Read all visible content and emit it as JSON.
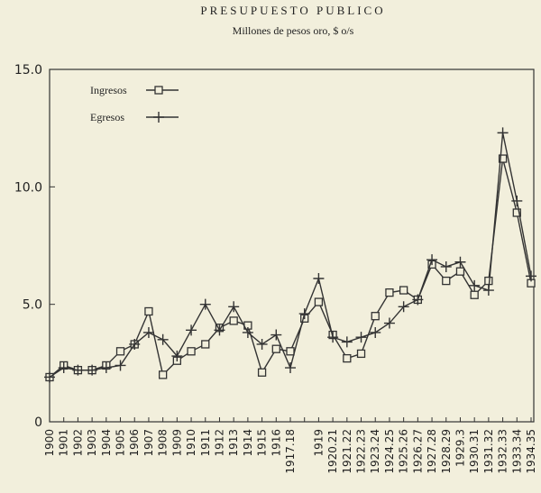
{
  "chart_data": {
    "type": "line",
    "title": "PRESUPUESTO PUBLICO",
    "subtitle": "Millones de pesos oro, $ o/s",
    "categories": [
      "1900",
      "1901",
      "1902",
      "1903",
      "1904",
      "1905",
      "1906",
      "1907",
      "1908",
      "1909",
      "1910",
      "1911",
      "1912",
      "1913",
      "1914",
      "1915",
      "1916",
      "1917.18",
      null,
      "1919",
      "1920.21",
      "1921.22",
      "1922.23",
      "1923.24",
      "1924.25",
      "1925.26",
      "1926.27",
      "1927.28",
      "1928.29",
      "1929.3",
      "1930.31",
      "1931.32",
      "1932.33",
      "1933.34",
      "1934.35"
    ],
    "series": [
      {
        "name": "Ingresos",
        "color": "#333333",
        "marker": "square",
        "values": [
          1.9,
          2.4,
          2.2,
          2.2,
          2.4,
          3.0,
          3.3,
          4.7,
          2.0,
          2.6,
          3.0,
          3.3,
          4.0,
          4.3,
          4.1,
          2.1,
          3.1,
          3.0,
          4.4,
          5.1,
          3.7,
          2.7,
          2.9,
          4.5,
          5.5,
          5.6,
          5.2,
          6.7,
          6.0,
          6.4,
          5.4,
          6.0,
          11.2,
          8.9,
          5.9
        ]
      },
      {
        "name": "Egresos",
        "color": "#333333",
        "marker": "plus",
        "values": [
          1.9,
          2.3,
          2.2,
          2.2,
          2.3,
          2.4,
          3.3,
          3.8,
          3.5,
          2.8,
          3.9,
          5.0,
          3.9,
          4.9,
          3.8,
          3.3,
          3.7,
          2.3,
          4.6,
          6.1,
          3.6,
          3.4,
          3.6,
          3.8,
          4.2,
          4.9,
          5.2,
          6.9,
          6.6,
          6.8,
          5.8,
          5.6,
          12.3,
          9.4,
          6.2
        ]
      }
    ],
    "ylim": [
      0,
      15
    ],
    "yticks": [
      0,
      {
        "value": 5,
        "label": "5.0"
      },
      {
        "value": 10,
        "label": "10.0"
      },
      {
        "value": 15,
        "label": "15.0"
      }
    ]
  }
}
